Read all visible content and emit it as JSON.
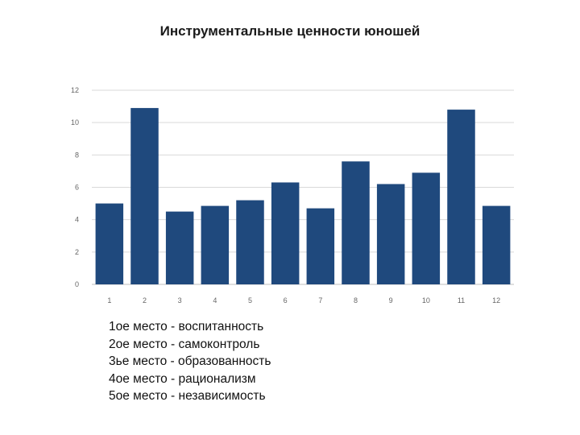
{
  "chart_data": {
    "type": "bar",
    "title": "Инструментальные ценности юношей",
    "categories": [
      "1",
      "2",
      "3",
      "4",
      "5",
      "6",
      "7",
      "8",
      "9",
      "10",
      "11",
      "12"
    ],
    "values": [
      5.0,
      10.9,
      4.5,
      4.85,
      5.2,
      6.3,
      4.7,
      7.6,
      6.2,
      6.9,
      10.8,
      4.85
    ],
    "ylim": [
      0,
      12
    ],
    "yticks": [
      "0",
      "2",
      "4",
      "6",
      "8",
      "10",
      "12"
    ],
    "xlabel": "",
    "ylabel": "",
    "grid": true,
    "bar_color": "#1f497d",
    "grid_color": "#d9d9d9"
  },
  "legend": [
    "1ое место - воспитанность",
    "2ое место - самоконтроль",
    "3ье место - образованность",
    "4ое место - рационализм",
    "5ое место - независимость"
  ]
}
